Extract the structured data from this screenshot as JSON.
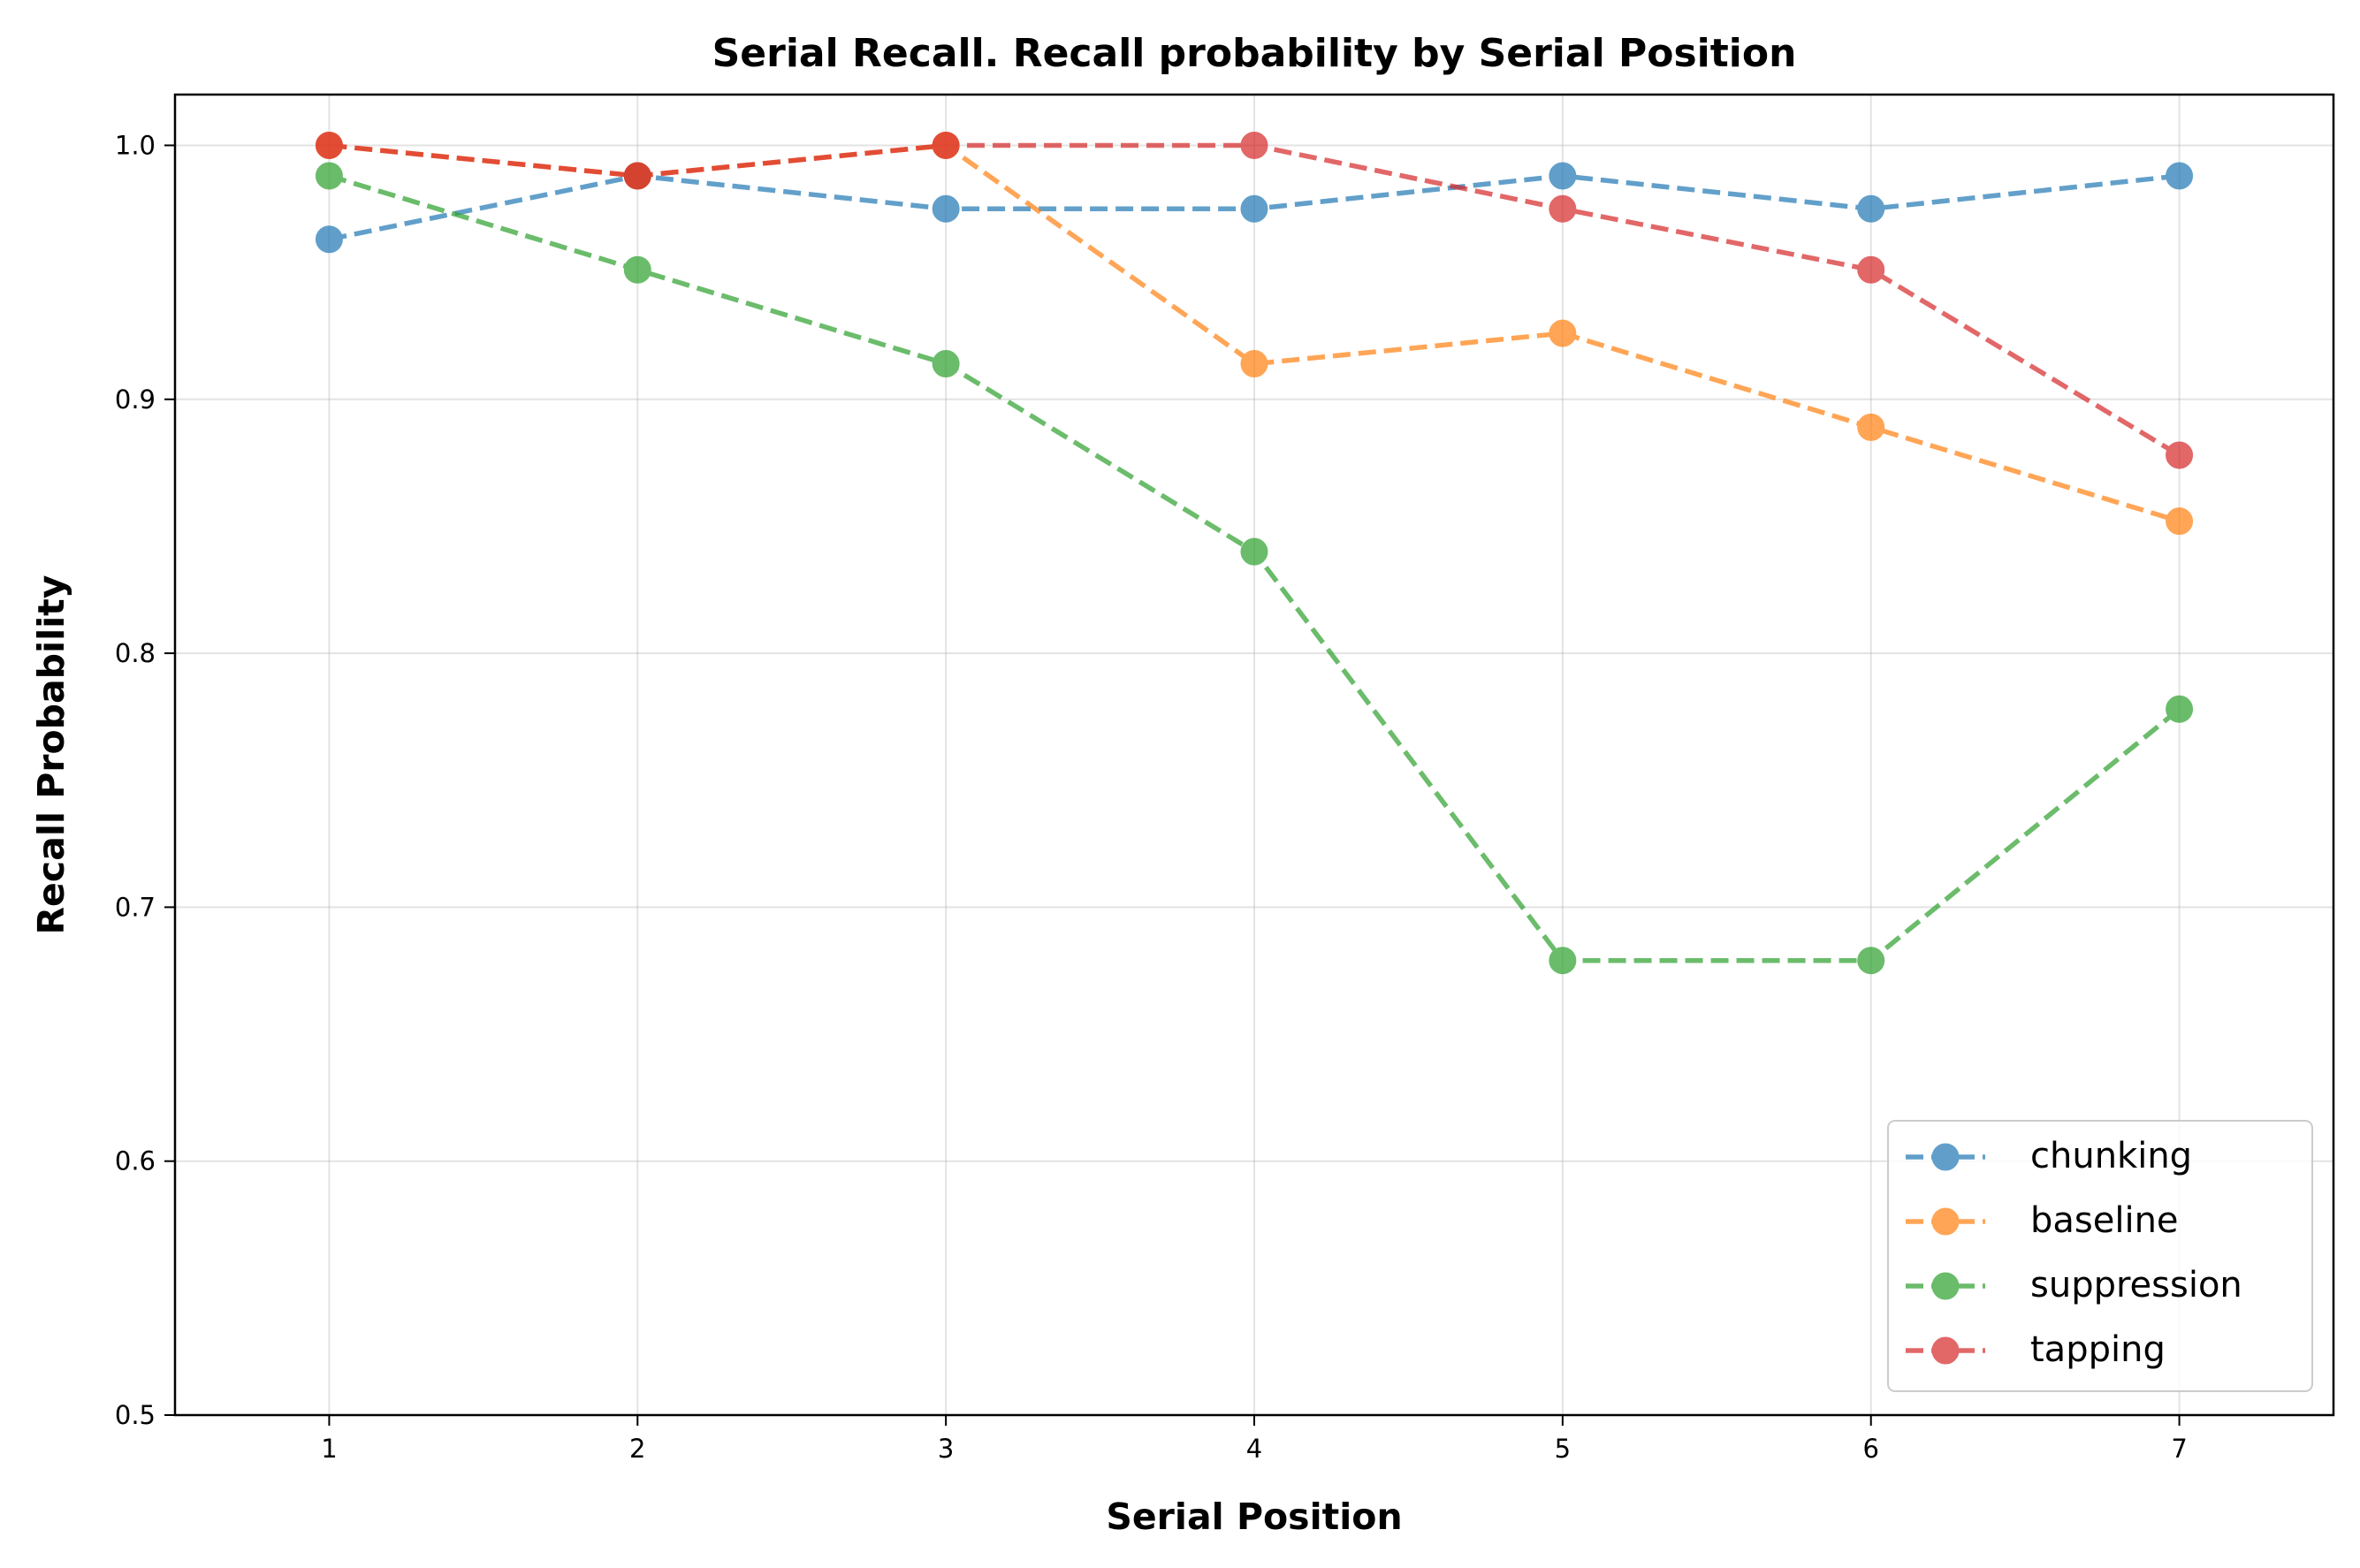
{
  "chart_data": {
    "type": "line",
    "title": "Serial Recall. Recall probability by Serial Position",
    "xlabel": "Serial Position",
    "ylabel": "Recall Probability",
    "x": [
      1,
      2,
      3,
      4,
      5,
      6,
      7
    ],
    "x_ticks": [
      "1",
      "2",
      "3",
      "4",
      "5",
      "6",
      "7"
    ],
    "xlim": [
      0.5,
      7.5
    ],
    "y_ticks": [
      "0.5",
      "0.6",
      "0.7",
      "0.8",
      "0.9",
      "1.0"
    ],
    "ylim": [
      0.5,
      1.02
    ],
    "grid": true,
    "legend_position": "lower-right",
    "line_style": "dashed",
    "marker": "circle",
    "series": [
      {
        "name": "chunking",
        "color": "#1f77b4",
        "values": [
          0.963,
          0.988,
          0.975,
          0.975,
          0.988,
          0.975,
          0.988
        ]
      },
      {
        "name": "baseline",
        "color": "#ff7f0e",
        "values": [
          1.0,
          0.988,
          1.0,
          0.914,
          0.926,
          0.889,
          0.852
        ]
      },
      {
        "name": "suppression",
        "color": "#2ca02c",
        "values": [
          0.988,
          0.951,
          0.914,
          0.84,
          0.679,
          0.679,
          0.778
        ]
      },
      {
        "name": "tapping",
        "color": "#d62728",
        "values": [
          1.0,
          0.988,
          1.0,
          1.0,
          0.975,
          0.951,
          0.878
        ]
      }
    ]
  }
}
